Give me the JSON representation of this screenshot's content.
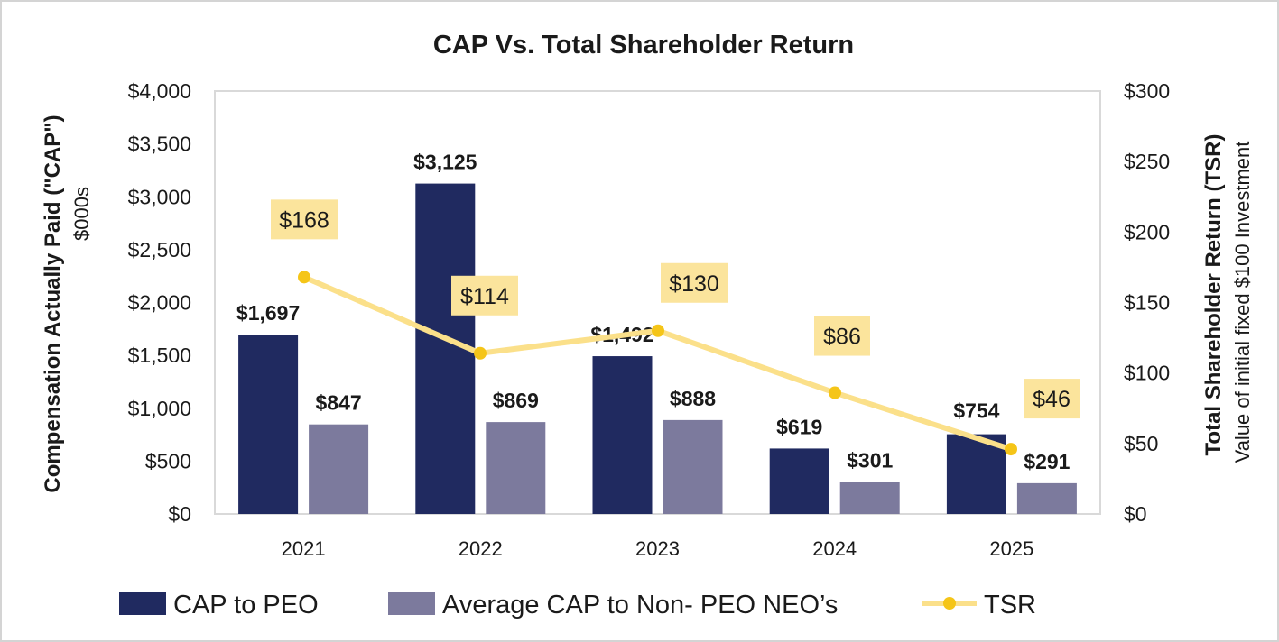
{
  "chart_data": {
    "type": "bar",
    "title": "CAP Vs. Total Shareholder Return",
    "categories": [
      "2021",
      "2022",
      "2023",
      "2024",
      "2025"
    ],
    "series": [
      {
        "name": "CAP to PEO",
        "axis": "left",
        "kind": "bar",
        "color": "#202a60",
        "values": [
          1697,
          3125,
          1492,
          619,
          754
        ],
        "labels": [
          "$1,697",
          "$3,125",
          "$1,492",
          "$619",
          "$754"
        ]
      },
      {
        "name": "Average CAP to Non- PEO NEO’s",
        "axis": "left",
        "kind": "bar",
        "color": "#7c7a9d",
        "values": [
          847,
          869,
          888,
          301,
          291
        ],
        "labels": [
          "$847",
          "$869",
          "$888",
          "$301",
          "$291"
        ]
      },
      {
        "name": "TSR",
        "axis": "right",
        "kind": "line",
        "color": "#fbe08a",
        "marker_color": "#f5c518",
        "values": [
          168,
          114,
          130,
          86,
          46
        ],
        "labels": [
          "$168",
          "$114",
          "$130",
          "$86",
          "$46"
        ]
      }
    ],
    "y_left": {
      "label": "Compensation Actually Paid (\"CAP\")",
      "sublabel": "$000s",
      "range": [
        0,
        4000
      ],
      "ticks": [
        0,
        500,
        1000,
        1500,
        2000,
        2500,
        3000,
        3500,
        4000
      ],
      "tick_labels": [
        "$0",
        "$500",
        "$1,000",
        "$1,500",
        "$2,000",
        "$2,500",
        "$3,000",
        "$3,500",
        "$4,000"
      ]
    },
    "y_right": {
      "label": "Total Shareholder Return (TSR)",
      "sublabel": "Value of initial fixed $100 Investment",
      "range": [
        0,
        300
      ],
      "ticks": [
        0,
        50,
        100,
        150,
        200,
        250,
        300
      ],
      "tick_labels": [
        "$0",
        "$50",
        "$100",
        "$150",
        "$200",
        "$250",
        "$300"
      ]
    },
    "grid": false,
    "legend_position": "bottom",
    "label_box_color": "#fbe49c"
  }
}
